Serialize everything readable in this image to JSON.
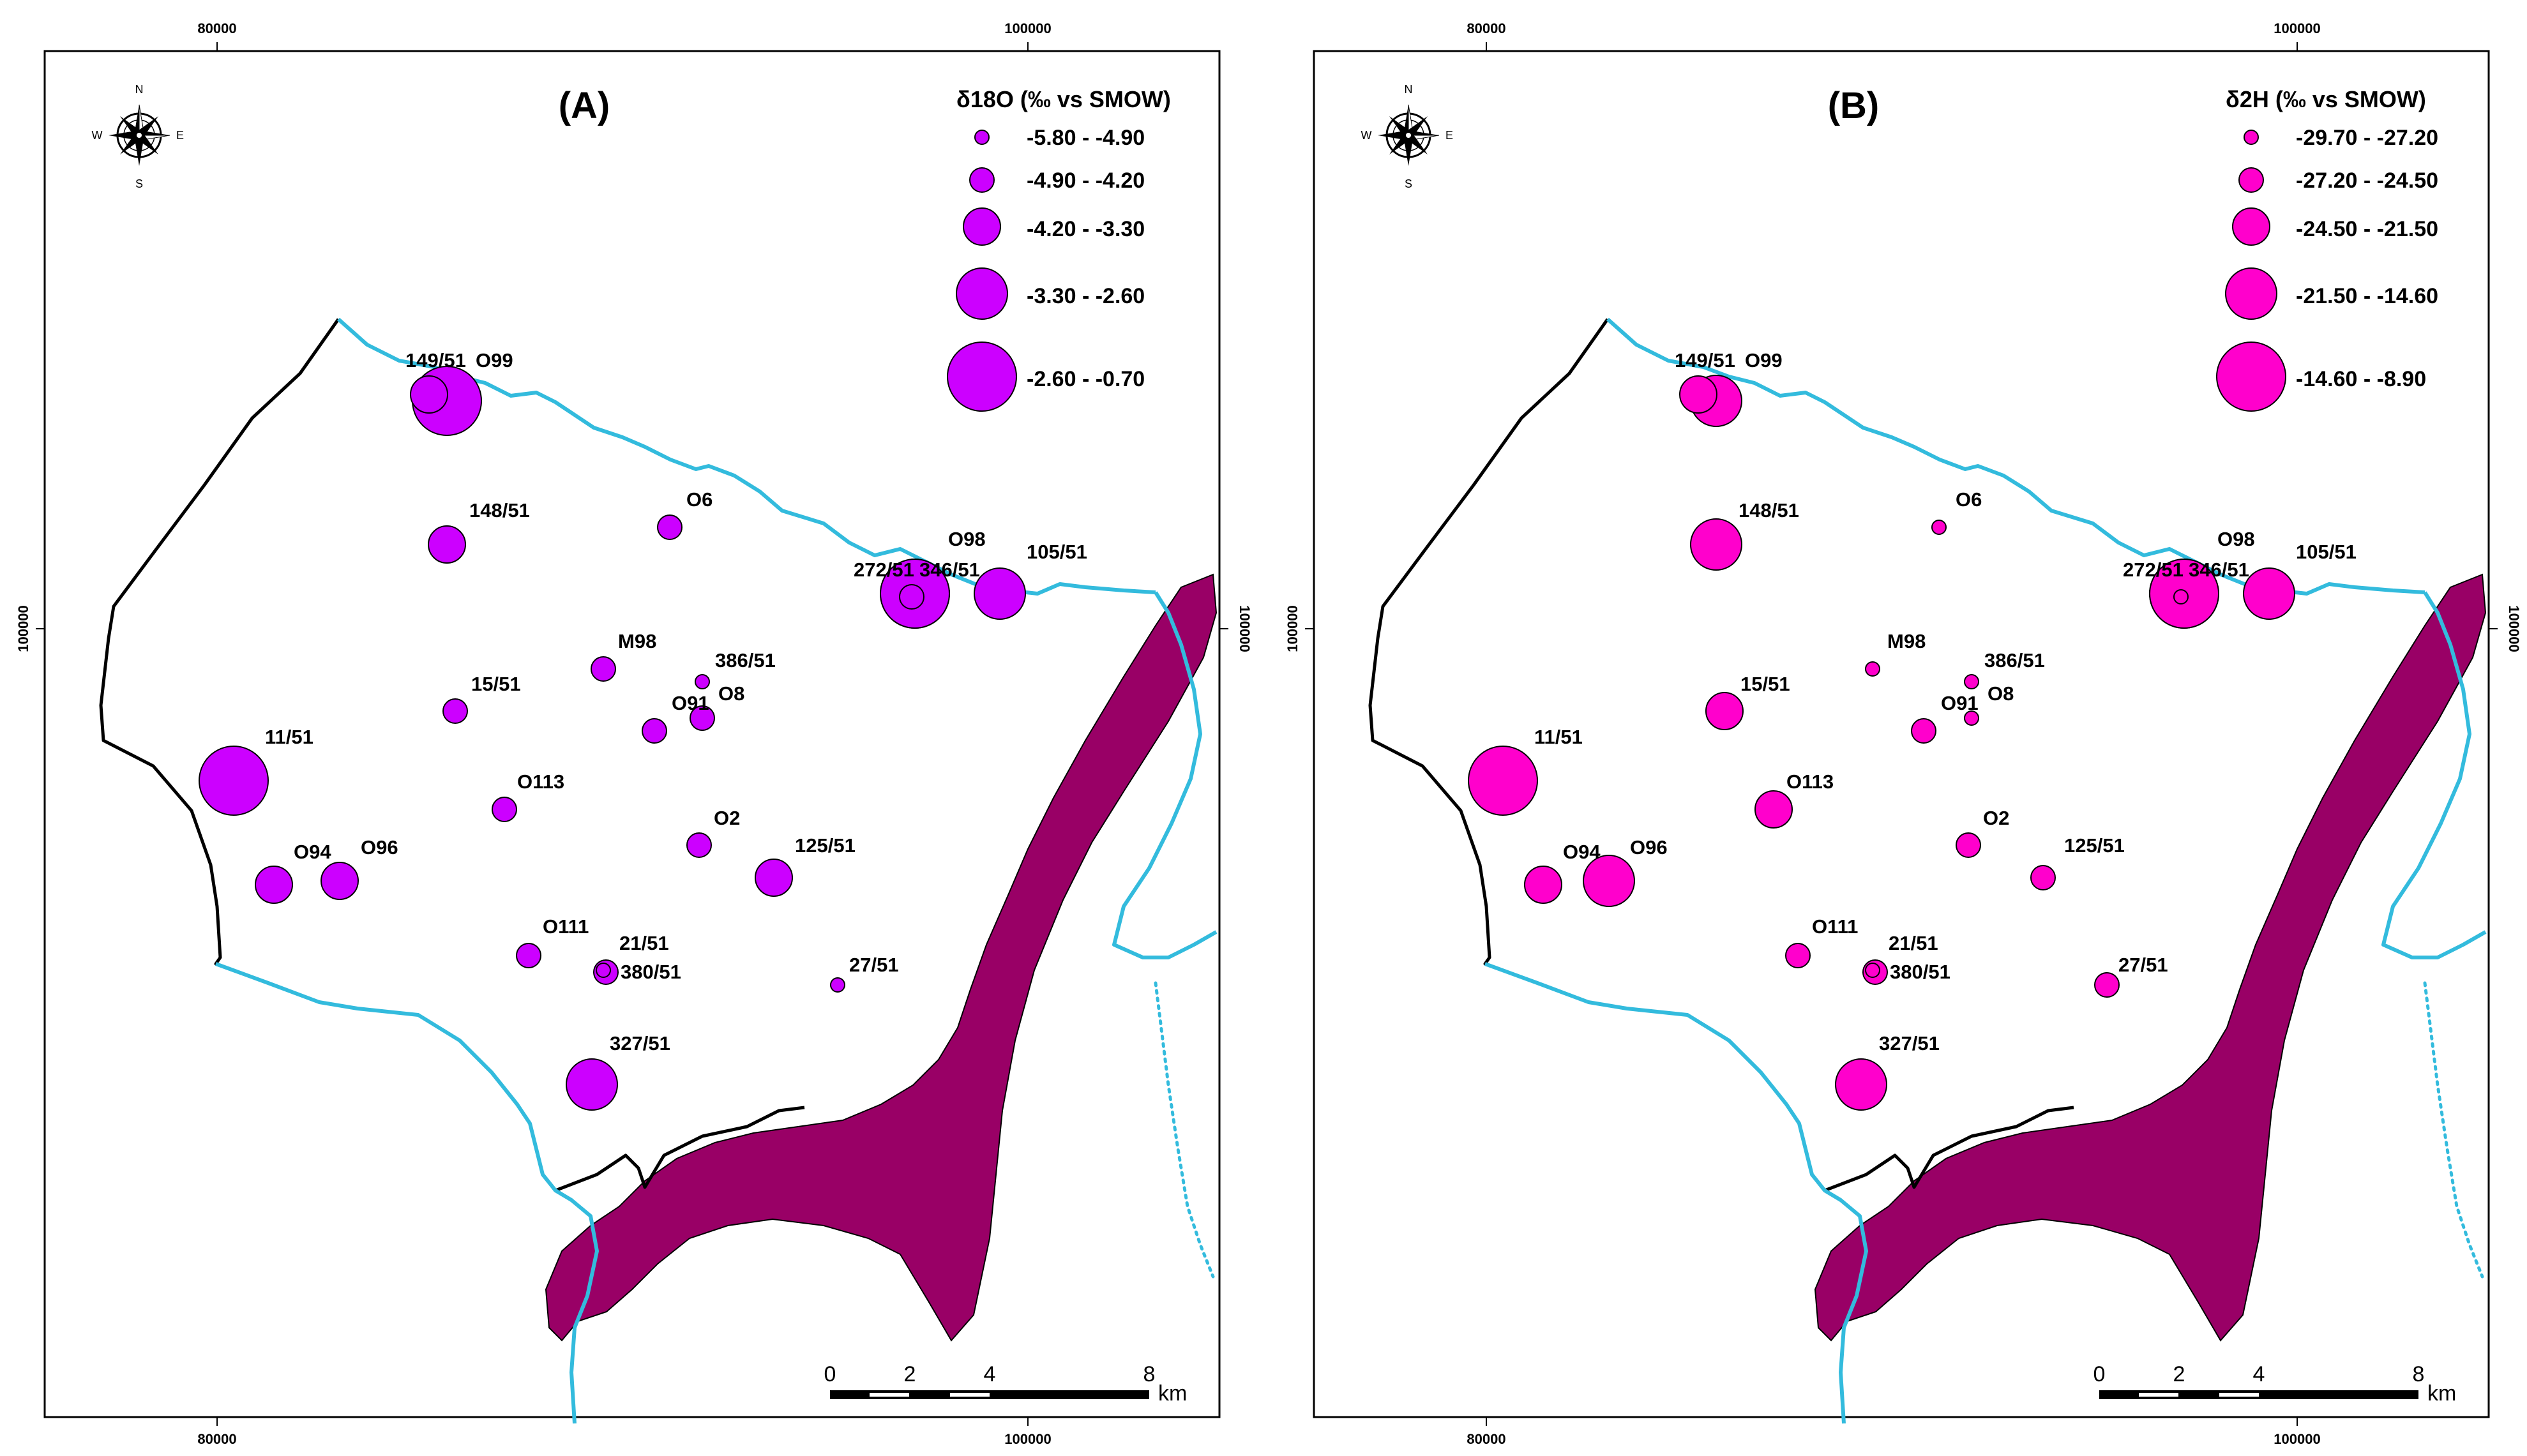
{
  "map_a": {
    "title": "(A)",
    "legend_title": "δ18O (‰ vs SMOW)",
    "classes": [
      "-5.80 - -4.90",
      "-4.90 - -4.20",
      "-4.20 - -3.30",
      "-3.30 - -2.60",
      "-2.60 - -0.70"
    ],
    "symbol_color": "#cc00ff",
    "sites": [
      {
        "label": "149/51",
        "class": 2
      },
      {
        "label": "O99",
        "class": 4
      },
      {
        "label": "148/51",
        "class": 2
      },
      {
        "label": "O6",
        "class": 1
      },
      {
        "label": "O98",
        "class": 4
      },
      {
        "label": "272/51",
        "class": 1
      },
      {
        "label": "346/51",
        "class": 4
      },
      {
        "label": "105/51",
        "class": 3
      },
      {
        "label": "M98",
        "class": 1
      },
      {
        "label": "386/51",
        "class": 0
      },
      {
        "label": "15/51",
        "class": 1
      },
      {
        "label": "O91",
        "class": 1
      },
      {
        "label": "O8",
        "class": 1
      },
      {
        "label": "11/51",
        "class": 4
      },
      {
        "label": "O113",
        "class": 1
      },
      {
        "label": "O2",
        "class": 1
      },
      {
        "label": "125/51",
        "class": 2
      },
      {
        "label": "O94",
        "class": 2
      },
      {
        "label": "O96",
        "class": 2
      },
      {
        "label": "O111",
        "class": 1
      },
      {
        "label": "21/51",
        "class": 0
      },
      {
        "label": "380/51",
        "class": 1
      },
      {
        "label": "27/51",
        "class": 0
      },
      {
        "label": "327/51",
        "class": 3
      }
    ]
  },
  "map_b": {
    "title": "(B)",
    "legend_title": "δ2H (‰ vs SMOW)",
    "classes": [
      "-29.70 - -27.20",
      "-27.20 - -24.50",
      "-24.50 - -21.50",
      "-21.50 - -14.60",
      "-14.60 - -8.90"
    ],
    "symbol_color": "#ff00cc",
    "sites": [
      {
        "label": "149/51",
        "class": 2
      },
      {
        "label": "O99",
        "class": 3
      },
      {
        "label": "148/51",
        "class": 3
      },
      {
        "label": "O6",
        "class": 0
      },
      {
        "label": "O98",
        "class": 4
      },
      {
        "label": "272/51",
        "class": 0
      },
      {
        "label": "346/51",
        "class": 4
      },
      {
        "label": "105/51",
        "class": 3
      },
      {
        "label": "M98",
        "class": 0
      },
      {
        "label": "386/51",
        "class": 0
      },
      {
        "label": "15/51",
        "class": 2
      },
      {
        "label": "O91",
        "class": 1
      },
      {
        "label": "O8",
        "class": 0
      },
      {
        "label": "11/51",
        "class": 4
      },
      {
        "label": "O113",
        "class": 2
      },
      {
        "label": "O2",
        "class": 1
      },
      {
        "label": "125/51",
        "class": 1
      },
      {
        "label": "O94",
        "class": 2
      },
      {
        "label": "O96",
        "class": 3
      },
      {
        "label": "O111",
        "class": 1
      },
      {
        "label": "21/51",
        "class": 0
      },
      {
        "label": "380/51",
        "class": 1
      },
      {
        "label": "27/51",
        "class": 1
      },
      {
        "label": "327/51",
        "class": 3
      }
    ]
  },
  "axis_ticks": {
    "x": [
      "80000",
      "100000"
    ],
    "y": [
      "100000"
    ]
  },
  "compass": {
    "n": "N",
    "s": "S",
    "e": "E",
    "w": "W"
  },
  "scale_bar": {
    "labels": [
      "0",
      "2",
      "4",
      "8"
    ],
    "unit": "km"
  },
  "colors": {
    "river": "#33bbdd",
    "lake": "#990066",
    "boundary": "#000000",
    "frame": "#000000"
  }
}
